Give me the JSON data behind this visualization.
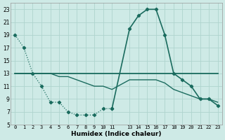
{
  "xlabel": "Humidex (Indice chaleur)",
  "background_color": "#ceeae6",
  "grid_color": "#aed4ce",
  "line_color": "#1a6b5e",
  "xlim": [
    -0.5,
    23.5
  ],
  "ylim": [
    5,
    24
  ],
  "xtick_positions": [
    0,
    1,
    2,
    3,
    4,
    5,
    6,
    7,
    8,
    9,
    10,
    11,
    13,
    14,
    15,
    16,
    17,
    18,
    19,
    20,
    21,
    22,
    23
  ],
  "xtick_labels": [
    "0",
    "1",
    "2",
    "3",
    "4",
    "5",
    "6",
    "7",
    "8",
    "9",
    "10",
    "11",
    "13",
    "14",
    "15",
    "16",
    "17",
    "18",
    "19",
    "20",
    "21",
    "22",
    "23"
  ],
  "ytick_positions": [
    5,
    7,
    9,
    11,
    13,
    15,
    17,
    19,
    21,
    23
  ],
  "ytick_labels": [
    "5",
    "7",
    "9",
    "11",
    "13",
    "15",
    "17",
    "19",
    "21",
    "23"
  ],
  "s1_x": [
    0,
    1,
    2,
    3,
    4,
    5,
    6,
    7,
    8,
    9,
    10,
    11
  ],
  "s1_y": [
    19,
    17,
    13,
    11,
    8.5,
    8.5,
    7,
    6.5,
    6.5,
    6.5,
    7.5,
    7.5
  ],
  "s2_x": [
    0,
    2,
    3,
    4,
    5,
    6,
    7,
    8,
    9,
    10,
    11,
    13,
    14,
    15,
    16,
    17,
    18,
    19,
    20,
    21,
    22,
    23
  ],
  "s2_y": [
    13,
    13,
    13,
    13,
    13,
    13,
    13,
    13,
    13,
    13,
    13,
    13,
    13,
    13,
    13,
    13,
    13,
    13,
    13,
    13,
    13,
    13
  ],
  "s3_x": [
    11,
    13,
    14,
    15,
    16,
    17,
    18,
    19,
    20,
    21,
    22,
    23
  ],
  "s3_y": [
    7.5,
    20,
    22,
    23,
    23,
    19,
    13,
    12,
    11,
    9,
    9,
    8
  ],
  "s4_x": [
    0,
    2,
    3,
    4,
    5,
    6,
    7,
    8,
    9,
    10,
    11,
    13,
    14,
    15,
    16,
    17,
    18,
    19,
    20,
    21,
    22,
    23
  ],
  "s4_y": [
    13,
    13,
    13,
    13,
    12.5,
    12.5,
    12,
    11.5,
    11,
    11,
    10.5,
    12,
    12,
    12,
    12,
    11.5,
    10.5,
    10,
    9.5,
    9,
    9,
    8.5
  ]
}
